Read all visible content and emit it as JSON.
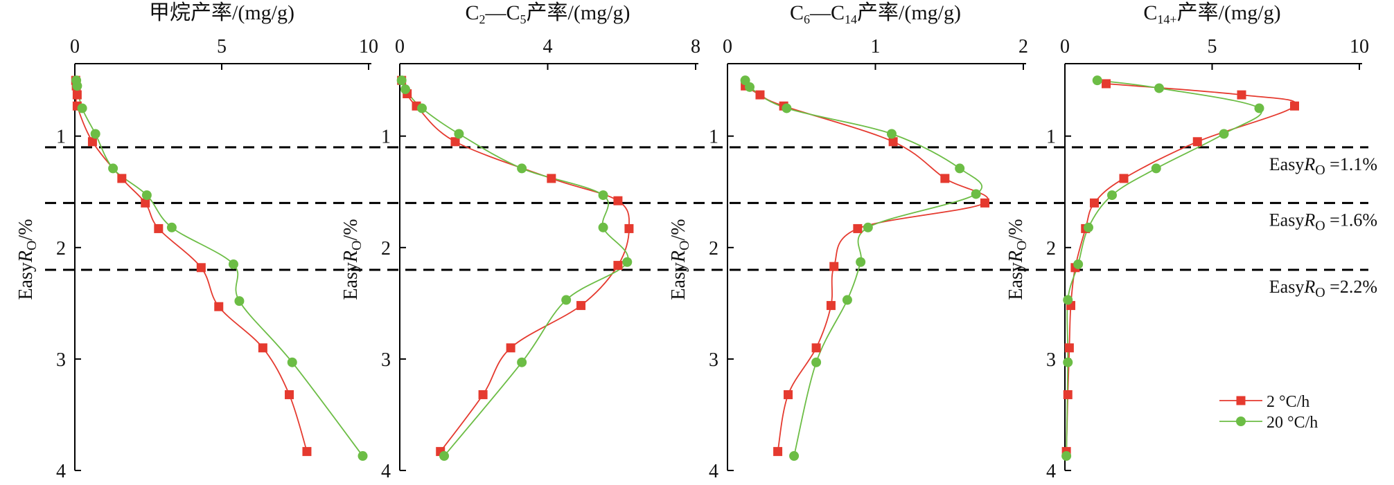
{
  "chart_data": {
    "type": "line",
    "y_axis": {
      "label": "EasyRo/%",
      "label_main": "Easy",
      "label_sub": "O",
      "label_unit": "/%",
      "label_r": "R",
      "range": [
        0.35,
        4
      ],
      "ticks": [
        1,
        2,
        3,
        4
      ],
      "inverted": true
    },
    "legend": {
      "placement": "bottom-right",
      "items": [
        {
          "name": "2 °C/h",
          "color": "#e53a2f",
          "marker": "square"
        },
        {
          "name": "20 °C/h",
          "color": "#6cbd45",
          "marker": "circle"
        }
      ]
    },
    "reference_lines": [
      {
        "value": 1.1,
        "label": "EasyRo =1.1%",
        "label_pre": "Easy",
        "label_r": "R",
        "label_sub": "O",
        "label_post": " =1.1%"
      },
      {
        "value": 1.6,
        "label": "EasyRo =1.6%",
        "label_pre": "Easy",
        "label_r": "R",
        "label_sub": "O",
        "label_post": " =1.6%"
      },
      {
        "value": 2.2,
        "label": "EasyRo =2.2%",
        "label_pre": "Easy",
        "label_r": "R",
        "label_sub": "O",
        "label_post": " =2.2%"
      }
    ],
    "panels": [
      {
        "title": "甲烷产率/(mg/g)",
        "xlim": [
          0,
          10
        ],
        "xticks": [
          0,
          5,
          10
        ],
        "series": [
          {
            "name": "2 °C/h",
            "points": [
              [
                0.03,
                0.5
              ],
              [
                0.05,
                0.55
              ],
              [
                0.08,
                0.63
              ],
              [
                0.08,
                0.73
              ],
              [
                0.6,
                1.05
              ],
              [
                1.6,
                1.38
              ],
              [
                2.4,
                1.6
              ],
              [
                2.85,
                1.83
              ],
              [
                4.3,
                2.18
              ],
              [
                4.9,
                2.53
              ],
              [
                6.4,
                2.9
              ],
              [
                7.3,
                3.32
              ],
              [
                7.9,
                3.83
              ]
            ]
          },
          {
            "name": "20 °C/h",
            "points": [
              [
                0.05,
                0.5
              ],
              [
                0.08,
                0.55
              ],
              [
                0.25,
                0.75
              ],
              [
                0.7,
                0.98
              ],
              [
                1.3,
                1.29
              ],
              [
                2.45,
                1.53
              ],
              [
                3.3,
                1.82
              ],
              [
                5.4,
                2.15
              ],
              [
                5.6,
                2.48
              ],
              [
                7.4,
                3.03
              ],
              [
                9.8,
                3.87
              ]
            ]
          }
        ]
      },
      {
        "title": "C2—C5产率/(mg/g)",
        "title_parts": [
          "C",
          "2",
          "—C",
          "5",
          "产率/(mg/g)"
        ],
        "xlim": [
          0,
          8
        ],
        "xticks": [
          0,
          4,
          8
        ],
        "series": [
          {
            "name": "2 °C/h",
            "points": [
              [
                0.05,
                0.5
              ],
              [
                0.2,
                0.62
              ],
              [
                0.45,
                0.73
              ],
              [
                1.5,
                1.05
              ],
              [
                4.1,
                1.38
              ],
              [
                5.9,
                1.58
              ],
              [
                6.2,
                1.83
              ],
              [
                5.9,
                2.16
              ],
              [
                4.9,
                2.52
              ],
              [
                3.0,
                2.9
              ],
              [
                2.25,
                3.32
              ],
              [
                1.1,
                3.83
              ]
            ]
          },
          {
            "name": "20 °C/h",
            "points": [
              [
                0.05,
                0.5
              ],
              [
                0.15,
                0.58
              ],
              [
                0.6,
                0.75
              ],
              [
                1.6,
                0.98
              ],
              [
                3.3,
                1.29
              ],
              [
                5.5,
                1.53
              ],
              [
                5.5,
                1.82
              ],
              [
                6.15,
                2.13
              ],
              [
                4.5,
                2.47
              ],
              [
                3.3,
                3.03
              ],
              [
                1.2,
                3.87
              ]
            ]
          }
        ]
      },
      {
        "title": "C6—C14产率/(mg/g)",
        "title_parts": [
          "C",
          "6",
          "—C",
          "14",
          "产率/(mg/g)"
        ],
        "xlim": [
          0,
          2
        ],
        "xticks": [
          0,
          1,
          2
        ],
        "series": [
          {
            "name": "2 °C/h",
            "points": [
              [
                0.12,
                0.55
              ],
              [
                0.22,
                0.63
              ],
              [
                0.38,
                0.73
              ],
              [
                1.12,
                1.05
              ],
              [
                1.47,
                1.38
              ],
              [
                1.74,
                1.6
              ],
              [
                0.88,
                1.83
              ],
              [
                0.72,
                2.17
              ],
              [
                0.7,
                2.52
              ],
              [
                0.6,
                2.9
              ],
              [
                0.41,
                3.32
              ],
              [
                0.34,
                3.83
              ]
            ]
          },
          {
            "name": "20 °C/h",
            "points": [
              [
                0.12,
                0.5
              ],
              [
                0.15,
                0.56
              ],
              [
                0.4,
                0.75
              ],
              [
                1.11,
                0.98
              ],
              [
                1.57,
                1.29
              ],
              [
                1.68,
                1.52
              ],
              [
                0.95,
                1.82
              ],
              [
                0.9,
                2.13
              ],
              [
                0.81,
                2.47
              ],
              [
                0.6,
                3.03
              ],
              [
                0.45,
                3.87
              ]
            ]
          }
        ]
      },
      {
        "title": "C14+产率/(mg/g)",
        "title_parts": [
          "C",
          "14+",
          "产率/(mg/g)"
        ],
        "xlim": [
          0,
          10
        ],
        "xticks": [
          0,
          5,
          10
        ],
        "series": [
          {
            "name": "2 °C/h",
            "points": [
              [
                1.4,
                0.53
              ],
              [
                6.0,
                0.63
              ],
              [
                7.8,
                0.73
              ],
              [
                4.5,
                1.05
              ],
              [
                2.0,
                1.38
              ],
              [
                1.0,
                1.6
              ],
              [
                0.7,
                1.83
              ],
              [
                0.35,
                2.18
              ],
              [
                0.2,
                2.52
              ],
              [
                0.15,
                2.9
              ],
              [
                0.1,
                3.32
              ],
              [
                0.05,
                3.83
              ]
            ]
          },
          {
            "name": "20 °C/h",
            "points": [
              [
                1.1,
                0.5
              ],
              [
                3.2,
                0.57
              ],
              [
                6.6,
                0.75
              ],
              [
                5.4,
                0.98
              ],
              [
                3.1,
                1.29
              ],
              [
                1.6,
                1.53
              ],
              [
                0.8,
                1.82
              ],
              [
                0.45,
                2.15
              ],
              [
                0.1,
                2.47
              ],
              [
                0.1,
                3.03
              ],
              [
                0.05,
                3.87
              ]
            ]
          }
        ]
      }
    ]
  }
}
